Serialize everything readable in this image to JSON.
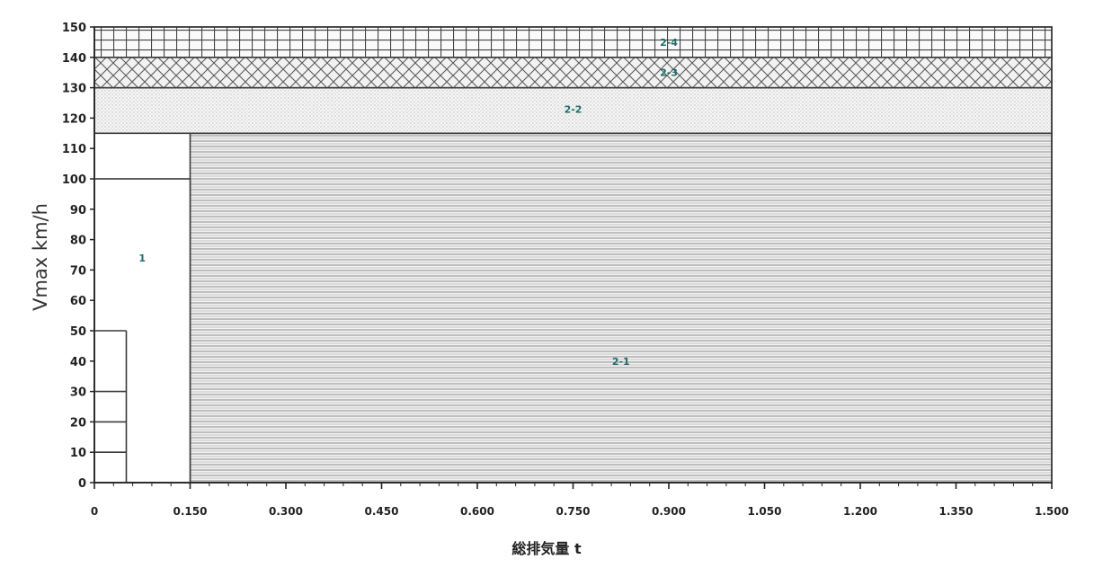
{
  "chart_data": {
    "type": "area",
    "title": "",
    "xlabel": "総排気量 t",
    "ylabel": "Vmax km/h",
    "xlim": [
      0,
      1.5
    ],
    "ylim": [
      0,
      150
    ],
    "x_ticks": [
      "0",
      "0.150",
      "0.300",
      "0.450",
      "0.600",
      "0.750",
      "0.900",
      "1.050",
      "1.200",
      "1.350",
      "1.500"
    ],
    "y_ticks": [
      "0",
      "10",
      "20",
      "30",
      "40",
      "50",
      "60",
      "70",
      "80",
      "90",
      "100",
      "110",
      "120",
      "130",
      "140",
      "150"
    ],
    "regions": [
      {
        "label": "2-1",
        "x": [
          0.15,
          1.5
        ],
        "y": [
          0,
          115
        ],
        "pattern": "horizontal-lines"
      },
      {
        "label": "1",
        "x": [
          0,
          0.15
        ],
        "y": [
          0,
          100
        ],
        "pattern": "none"
      },
      {
        "label": "2-2",
        "x": [
          0,
          1.5
        ],
        "y": [
          115,
          130
        ],
        "pattern": "dots"
      },
      {
        "label": "2-3",
        "x": [
          0,
          1.5
        ],
        "y": [
          130,
          140
        ],
        "pattern": "crosshatch"
      },
      {
        "label": "2-4",
        "x": [
          0,
          1.5
        ],
        "y": [
          140,
          150
        ],
        "pattern": "grid"
      }
    ],
    "inner_boundary": {
      "x": [
        0,
        0.05
      ],
      "y": [
        0,
        50
      ],
      "hlines_y": [
        10,
        20,
        30
      ]
    },
    "colors": {
      "line": "#3a3a3a",
      "label": "#1d6b6b"
    }
  }
}
